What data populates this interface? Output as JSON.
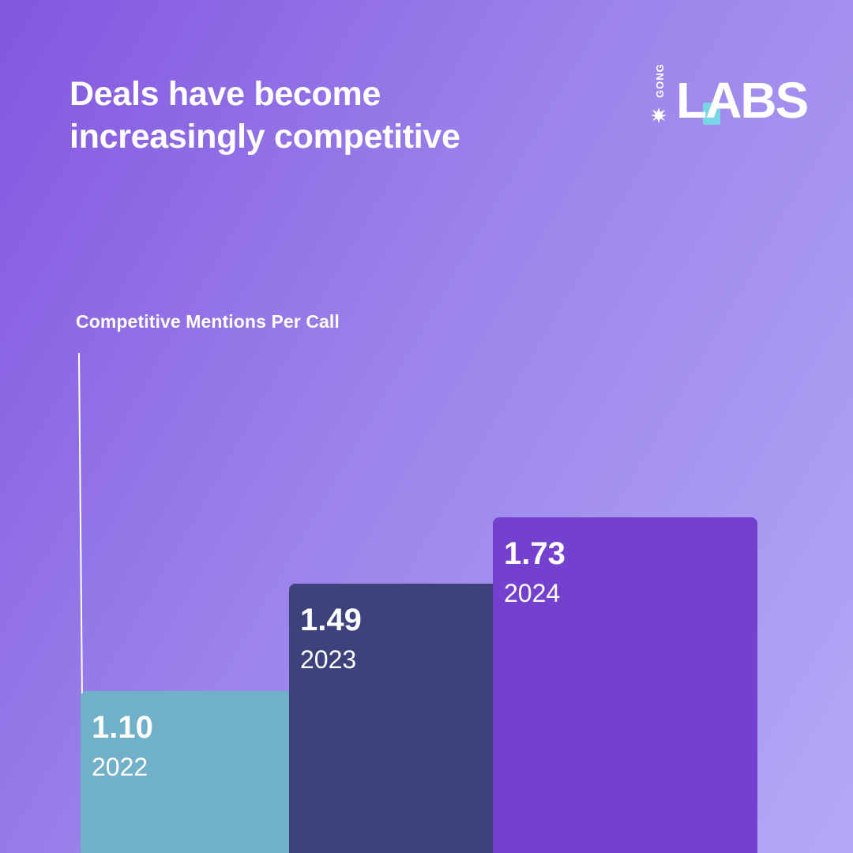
{
  "title": "Deals have become\nincreasingly competitive",
  "logo": {
    "brand": "GONG",
    "product": "LABS"
  },
  "chart_data": {
    "type": "bar",
    "title": "Deals have become increasingly competitive",
    "ylabel": "Competitive Mentions Per Call",
    "categories": [
      "2022",
      "2023",
      "2024"
    ],
    "values": [
      1.1,
      1.49,
      1.73
    ],
    "value_labels": [
      "1.10",
      "1.49",
      "1.73"
    ],
    "colors": [
      "#70b0c8",
      "#3d417c",
      "#7441cf"
    ],
    "grid": false,
    "legend": "none"
  }
}
